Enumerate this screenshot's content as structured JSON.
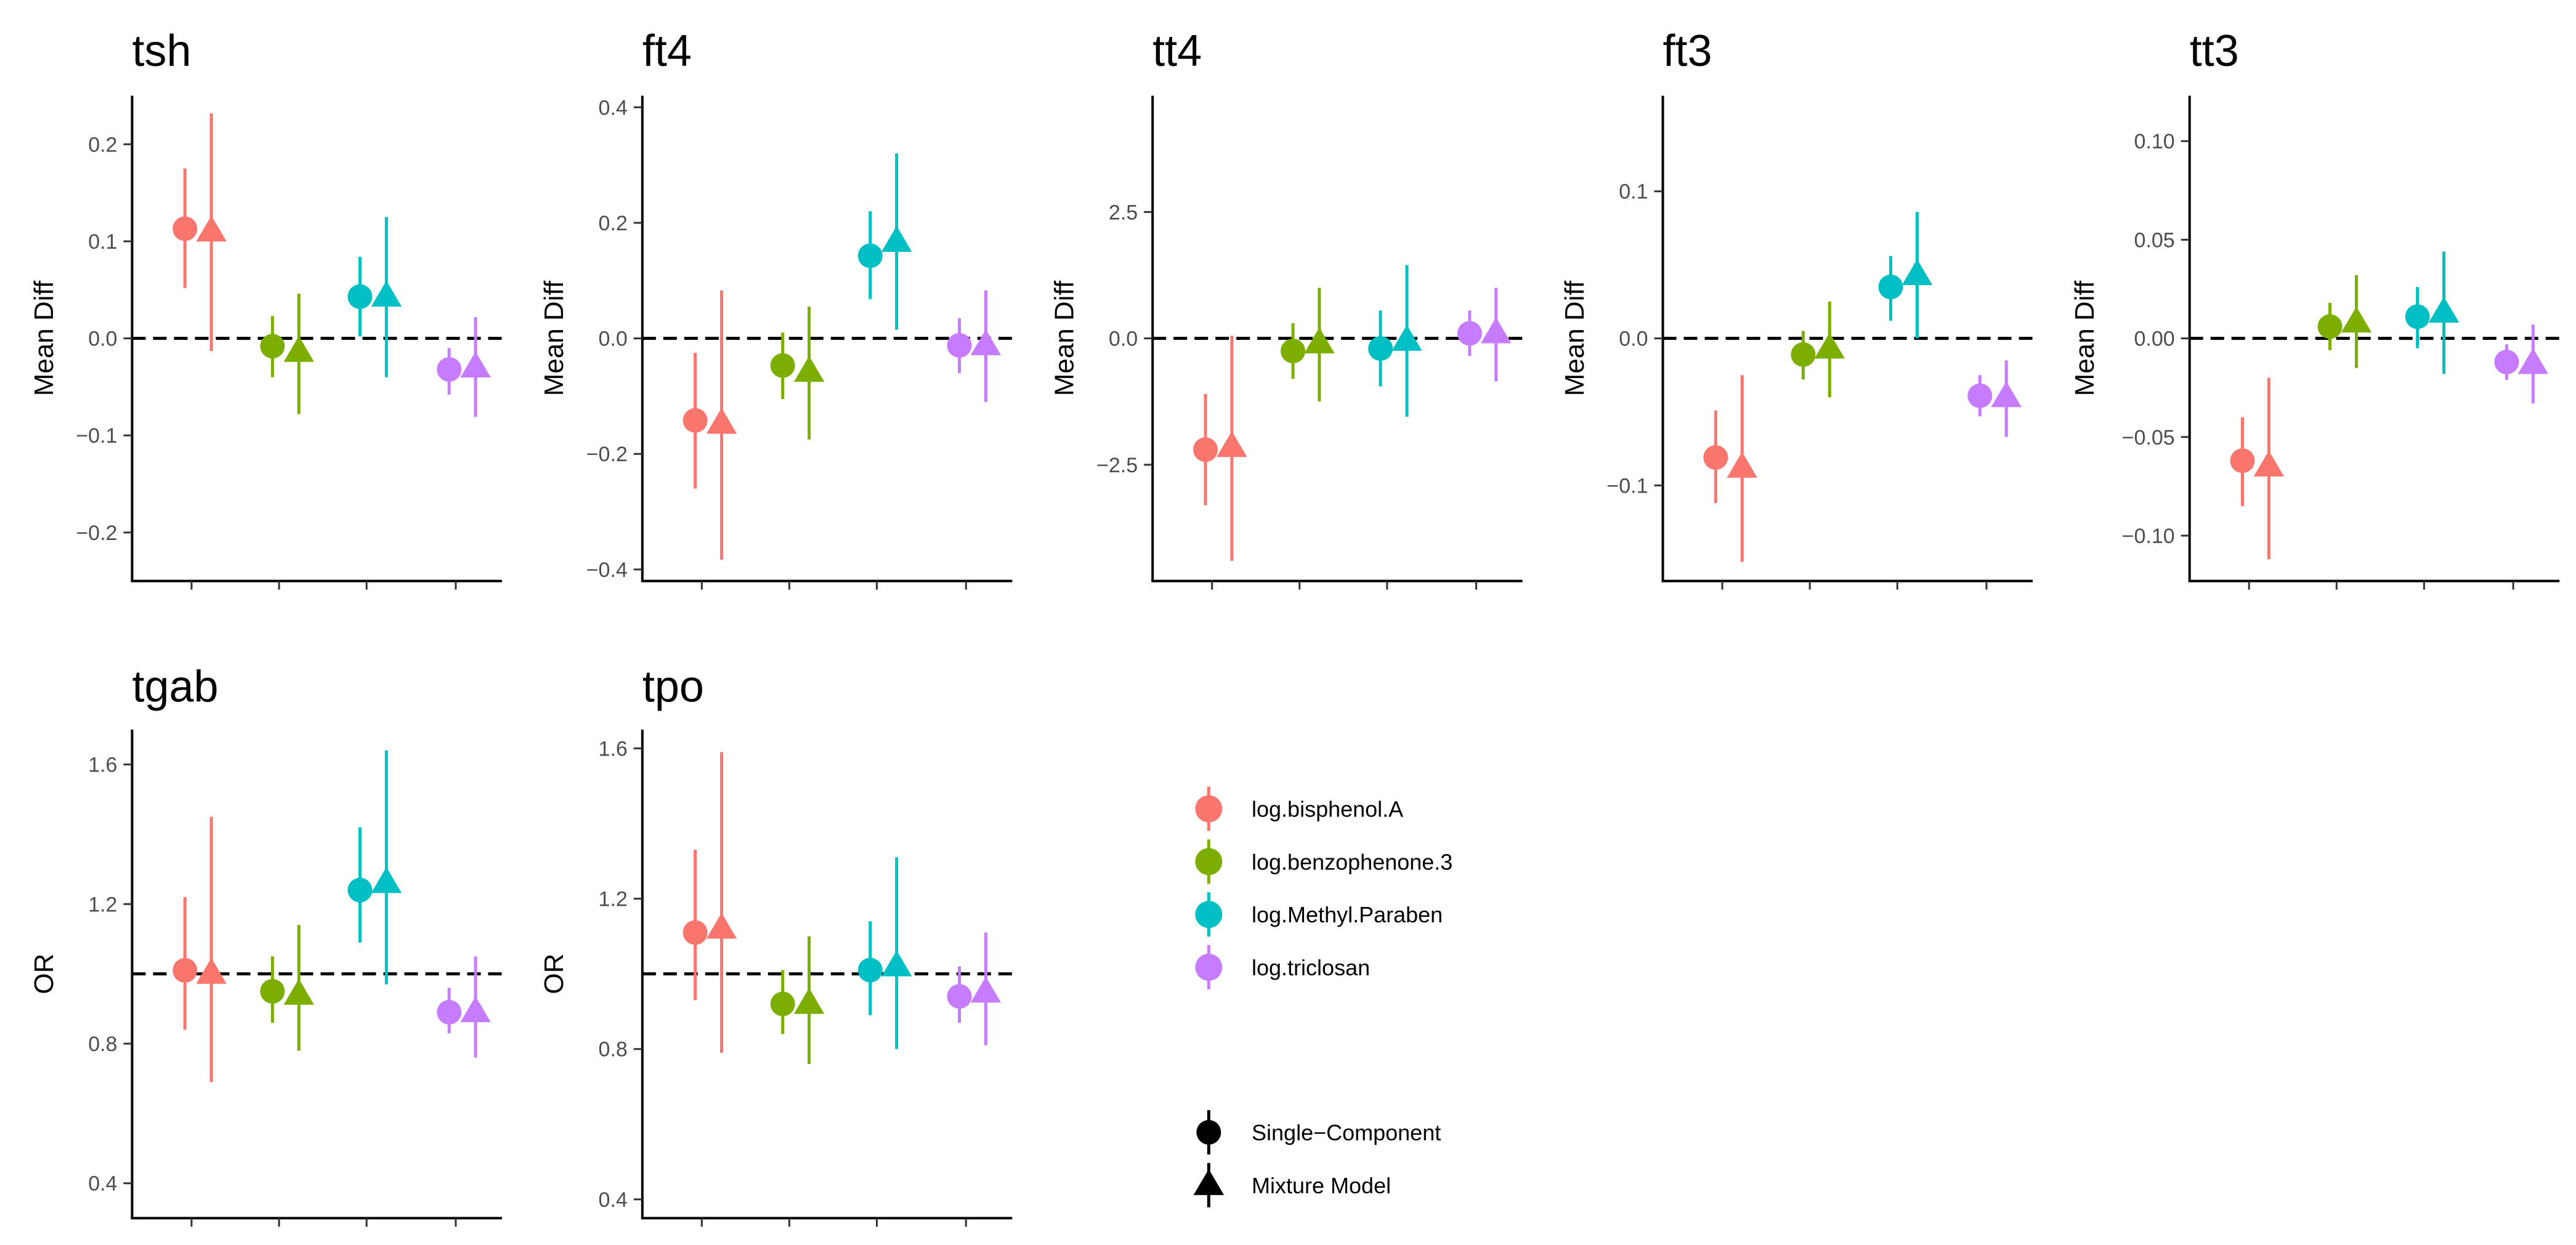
{
  "chart_data": {
    "type": "scatter",
    "subtype": "point-range forest plot (faceted)",
    "series_groups": [
      {
        "name": "log.bisphenol.A",
        "color": "#F8766D"
      },
      {
        "name": "log.benzophenone.3",
        "color": "#7CAE00"
      },
      {
        "name": "log.Methyl.Paraben",
        "color": "#00BFC4"
      },
      {
        "name": "log.triclosan",
        "color": "#C77CFF"
      }
    ],
    "models": [
      {
        "name": "Single−Component",
        "shape": "circle"
      },
      {
        "name": "Mixture Model",
        "shape": "triangle"
      }
    ],
    "reference_line": "dashed",
    "panels": [
      {
        "title": "tsh",
        "ylabel": "Mean Diff",
        "ref": 0,
        "ylim": [
          -0.25,
          0.25
        ],
        "ticks": [
          0.2,
          0.1,
          0.0,
          -0.1,
          -0.2
        ],
        "tick_labels": [
          "0.2",
          "0.1",
          "0.0",
          "−0.1",
          "−0.2"
        ],
        "points": [
          {
            "exposure": "log.bisphenol.A",
            "single": [
              0.113,
              0.052,
              0.175
            ],
            "mixture": [
              0.11,
              -0.013,
              0.232
            ]
          },
          {
            "exposure": "log.benzophenone.3",
            "single": [
              -0.008,
              -0.04,
              0.023
            ],
            "mixture": [
              -0.014,
              -0.078,
              0.046
            ]
          },
          {
            "exposure": "log.Methyl.Paraben",
            "single": [
              0.043,
              0.002,
              0.084
            ],
            "mixture": [
              0.043,
              -0.04,
              0.125
            ]
          },
          {
            "exposure": "log.triclosan",
            "single": [
              -0.032,
              -0.058,
              -0.01
            ],
            "mixture": [
              -0.03,
              -0.081,
              0.022
            ]
          }
        ]
      },
      {
        "title": "ft4",
        "ylabel": "Mean Diff",
        "ref": 0,
        "ylim": [
          -0.42,
          0.42
        ],
        "ticks": [
          0.4,
          0.2,
          0.0,
          -0.2,
          -0.4
        ],
        "tick_labels": [
          "0.4",
          "0.2",
          "0.0",
          "−0.2",
          "−0.4"
        ],
        "points": [
          {
            "exposure": "log.bisphenol.A",
            "single": [
              -0.142,
              -0.26,
              -0.025
            ],
            "mixture": [
              -0.148,
              -0.383,
              0.083
            ]
          },
          {
            "exposure": "log.benzophenone.3",
            "single": [
              -0.047,
              -0.105,
              0.01
            ],
            "mixture": [
              -0.058,
              -0.175,
              0.055
            ]
          },
          {
            "exposure": "log.Methyl.Paraben",
            "single": [
              0.143,
              0.068,
              0.22
            ],
            "mixture": [
              0.167,
              0.015,
              0.32
            ]
          },
          {
            "exposure": "log.triclosan",
            "single": [
              -0.012,
              -0.06,
              0.035
            ],
            "mixture": [
              -0.012,
              -0.11,
              0.083
            ]
          }
        ]
      },
      {
        "title": "tt4",
        "ylabel": "Mean Diff",
        "ref": 0,
        "ylim": [
          -4.8,
          4.8
        ],
        "ticks": [
          2.5,
          0.0,
          -2.5
        ],
        "tick_labels": [
          "2.5",
          "0.0",
          "−2.5"
        ],
        "points": [
          {
            "exposure": "log.bisphenol.A",
            "single": [
              -2.2,
              -3.3,
              -1.1
            ],
            "mixture": [
              -2.15,
              -4.4,
              0.05
            ]
          },
          {
            "exposure": "log.benzophenone.3",
            "single": [
              -0.25,
              -0.8,
              0.3
            ],
            "mixture": [
              -0.1,
              -1.25,
              1.0
            ]
          },
          {
            "exposure": "log.Methyl.Paraben",
            "single": [
              -0.2,
              -0.95,
              0.55
            ],
            "mixture": [
              -0.05,
              -1.55,
              1.45
            ]
          },
          {
            "exposure": "log.triclosan",
            "single": [
              0.1,
              -0.35,
              0.55
            ],
            "mixture": [
              0.1,
              -0.85,
              1.0
            ]
          }
        ]
      },
      {
        "title": "ft3",
        "ylabel": "Mean Diff",
        "ref": 0,
        "ylim": [
          -0.165,
          0.165
        ],
        "ticks": [
          0.1,
          0.0,
          -0.1
        ],
        "tick_labels": [
          "0.1",
          "0.0",
          "−0.1"
        ],
        "points": [
          {
            "exposure": "log.bisphenol.A",
            "single": [
              -0.081,
              -0.112,
              -0.049
            ],
            "mixture": [
              -0.088,
              -0.152,
              -0.025
            ]
          },
          {
            "exposure": "log.benzophenone.3",
            "single": [
              -0.011,
              -0.028,
              0.005
            ],
            "mixture": [
              -0.007,
              -0.04,
              0.025
            ]
          },
          {
            "exposure": "log.Methyl.Paraben",
            "single": [
              0.035,
              0.012,
              0.056
            ],
            "mixture": [
              0.043,
              0.0,
              0.086
            ]
          },
          {
            "exposure": "log.triclosan",
            "single": [
              -0.039,
              -0.053,
              -0.025
            ],
            "mixture": [
              -0.04,
              -0.067,
              -0.015
            ]
          }
        ]
      },
      {
        "title": "tt3",
        "ylabel": "Mean Diff",
        "ref": 0,
        "ylim": [
          -0.123,
          0.123
        ],
        "ticks": [
          0.1,
          0.05,
          0.0,
          -0.05,
          -0.1
        ],
        "tick_labels": [
          "0.10",
          "0.05",
          "0.00",
          "−0.05",
          "−0.10"
        ],
        "points": [
          {
            "exposure": "log.bisphenol.A",
            "single": [
              -0.062,
              -0.085,
              -0.04
            ],
            "mixture": [
              -0.065,
              -0.112,
              -0.02
            ]
          },
          {
            "exposure": "log.benzophenone.3",
            "single": [
              0.006,
              -0.006,
              0.018
            ],
            "mixture": [
              0.008,
              -0.015,
              0.032
            ]
          },
          {
            "exposure": "log.Methyl.Paraben",
            "single": [
              0.011,
              -0.005,
              0.026
            ],
            "mixture": [
              0.013,
              -0.018,
              0.044
            ]
          },
          {
            "exposure": "log.triclosan",
            "single": [
              -0.012,
              -0.021,
              -0.003
            ],
            "mixture": [
              -0.013,
              -0.033,
              0.007
            ]
          }
        ]
      },
      {
        "title": "tgab",
        "ylabel": "OR",
        "ref": 1,
        "ylim": [
          0.3,
          1.7
        ],
        "ticks": [
          1.6,
          1.2,
          0.8,
          0.4
        ],
        "tick_labels": [
          "1.6",
          "1.2",
          "0.8",
          "0.4"
        ],
        "points": [
          {
            "exposure": "log.bisphenol.A",
            "single": [
              1.01,
              0.84,
              1.22
            ],
            "mixture": [
              1.0,
              0.69,
              1.45
            ]
          },
          {
            "exposure": "log.benzophenone.3",
            "single": [
              0.95,
              0.86,
              1.05
            ],
            "mixture": [
              0.94,
              0.78,
              1.14
            ]
          },
          {
            "exposure": "log.Methyl.Paraben",
            "single": [
              1.24,
              1.09,
              1.42
            ],
            "mixture": [
              1.26,
              0.97,
              1.64
            ]
          },
          {
            "exposure": "log.triclosan",
            "single": [
              0.89,
              0.83,
              0.96
            ],
            "mixture": [
              0.89,
              0.76,
              1.05
            ]
          }
        ]
      },
      {
        "title": "tpo",
        "ylabel": "OR",
        "ref": 1,
        "ylim": [
          0.35,
          1.65
        ],
        "ticks": [
          1.6,
          1.2,
          0.8,
          0.4
        ],
        "tick_labels": [
          "1.6",
          "1.2",
          "0.8",
          "0.4"
        ],
        "points": [
          {
            "exposure": "log.bisphenol.A",
            "single": [
              1.11,
              0.93,
              1.33
            ],
            "mixture": [
              1.12,
              0.79,
              1.59
            ]
          },
          {
            "exposure": "log.benzophenone.3",
            "single": [
              0.92,
              0.84,
              1.01
            ],
            "mixture": [
              0.92,
              0.76,
              1.1
            ]
          },
          {
            "exposure": "log.Methyl.Paraben",
            "single": [
              1.01,
              0.89,
              1.14
            ],
            "mixture": [
              1.02,
              0.8,
              1.31
            ]
          },
          {
            "exposure": "log.triclosan",
            "single": [
              0.94,
              0.87,
              1.02
            ],
            "mixture": [
              0.95,
              0.81,
              1.11
            ]
          }
        ]
      }
    ]
  }
}
